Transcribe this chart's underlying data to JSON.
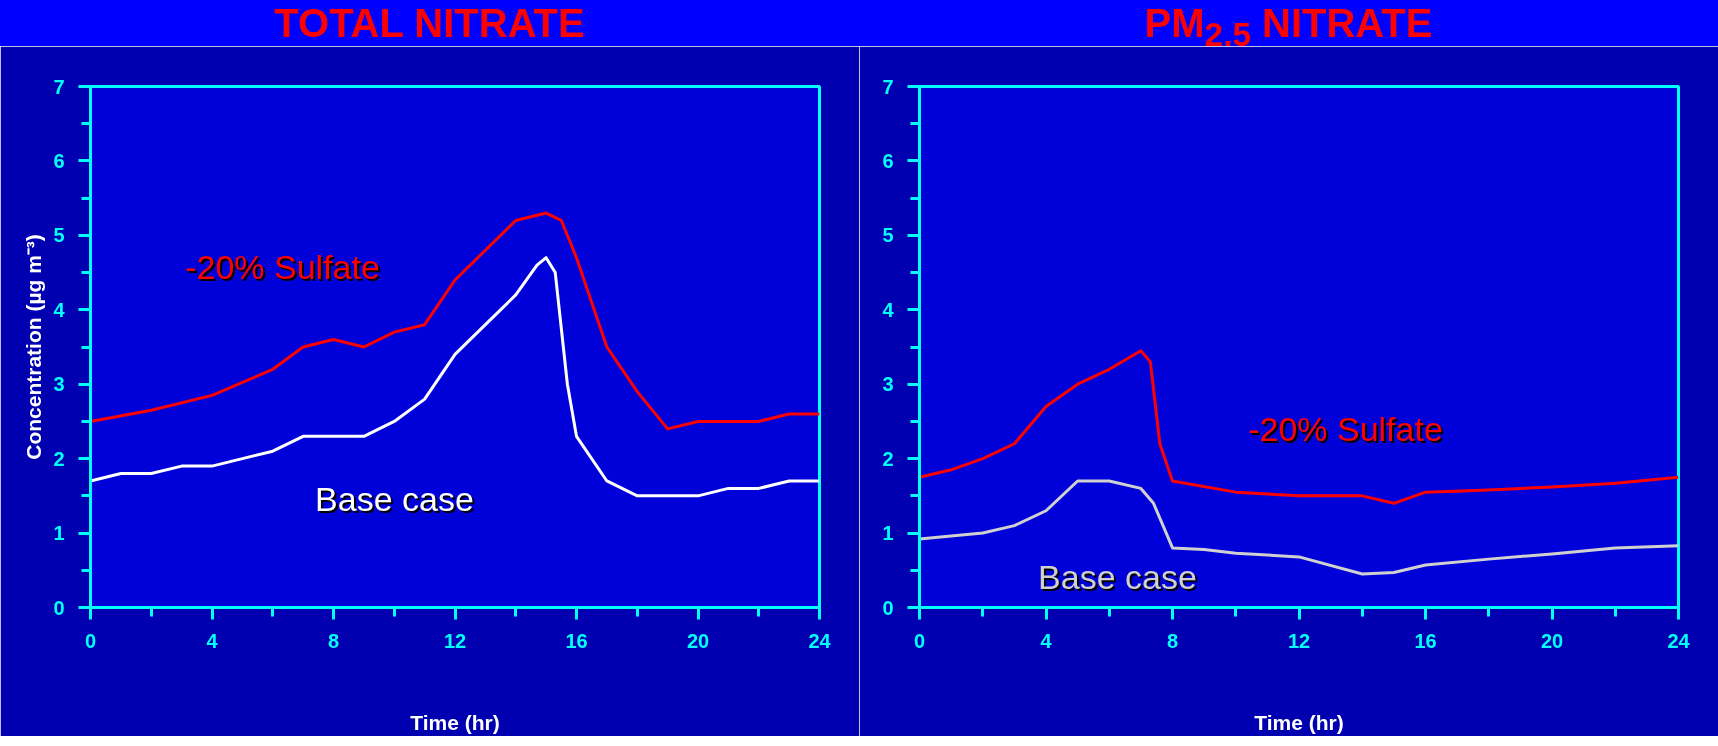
{
  "chart_data": [
    {
      "type": "line",
      "title": "TOTAL NITRATE",
      "xlabel": "Time (hr)",
      "ylabel": "Concentration (µg m⁻³)",
      "xlim": [
        0,
        24
      ],
      "ylim": [
        0,
        7
      ],
      "xticks": [
        0,
        4,
        8,
        12,
        16,
        20,
        24
      ],
      "yticks": [
        0,
        1,
        2,
        3,
        4,
        5,
        6,
        7
      ],
      "grid": false,
      "marker": "none",
      "line_style": "solid",
      "series": [
        {
          "name": "-20% Sulfate",
          "color": "#ff0000",
          "x": [
            0,
            2,
            4,
            6,
            7,
            8,
            9,
            10,
            11,
            12,
            13,
            14,
            15,
            15.5,
            16,
            17,
            18,
            19,
            20,
            22,
            23,
            24
          ],
          "values": [
            2.5,
            2.65,
            2.85,
            3.2,
            3.5,
            3.6,
            3.5,
            3.7,
            3.8,
            4.4,
            4.8,
            5.2,
            5.3,
            5.2,
            4.7,
            3.5,
            2.9,
            2.4,
            2.5,
            2.5,
            2.6,
            2.6
          ]
        },
        {
          "name": "Base case",
          "color": "#ffffff",
          "x": [
            0,
            1,
            2,
            3,
            4,
            5,
            6,
            7,
            8,
            9,
            10,
            11,
            12,
            13,
            14,
            14.7,
            15,
            15.3,
            15.7,
            16,
            17,
            18,
            20,
            21,
            22,
            23,
            24
          ],
          "values": [
            1.7,
            1.8,
            1.8,
            1.9,
            1.9,
            2.0,
            2.1,
            2.3,
            2.3,
            2.3,
            2.5,
            2.8,
            3.4,
            3.8,
            4.2,
            4.6,
            4.7,
            4.5,
            3.0,
            2.3,
            1.7,
            1.5,
            1.5,
            1.6,
            1.6,
            1.7,
            1.7
          ]
        }
      ]
    },
    {
      "type": "line",
      "title": "PM$_{2.5}$ NITRATE",
      "xlabel": "Time (hr)",
      "xlim": [
        0,
        24
      ],
      "ylim": [
        0,
        7
      ],
      "xticks": [
        0,
        4,
        8,
        12,
        16,
        20,
        24
      ],
      "yticks": [
        0,
        1,
        2,
        3,
        4,
        5,
        6,
        7
      ],
      "grid": false,
      "marker": "none",
      "line_style": "solid",
      "series": [
        {
          "name": "-20% Sulfate",
          "color": "#ff0000",
          "x": [
            0,
            1,
            2,
            3,
            4,
            5,
            6,
            7,
            7.3,
            7.6,
            8,
            10,
            12,
            14,
            15,
            16,
            18,
            20,
            22,
            24
          ],
          "values": [
            1.75,
            1.85,
            2.0,
            2.2,
            2.7,
            3.0,
            3.2,
            3.45,
            3.3,
            2.2,
            1.7,
            1.55,
            1.5,
            1.5,
            1.4,
            1.55,
            1.58,
            1.62,
            1.67,
            1.75
          ]
        },
        {
          "name": "Base case",
          "color": "#d0d0d0",
          "x": [
            0,
            2,
            3,
            4,
            5,
            6,
            7,
            7.4,
            8,
            9,
            10,
            12,
            14,
            15,
            16,
            18,
            20,
            22,
            24
          ],
          "values": [
            0.92,
            1.0,
            1.1,
            1.3,
            1.7,
            1.7,
            1.6,
            1.4,
            0.8,
            0.78,
            0.73,
            0.68,
            0.45,
            0.47,
            0.57,
            0.65,
            0.72,
            0.8,
            0.83
          ]
        }
      ]
    }
  ]
}
